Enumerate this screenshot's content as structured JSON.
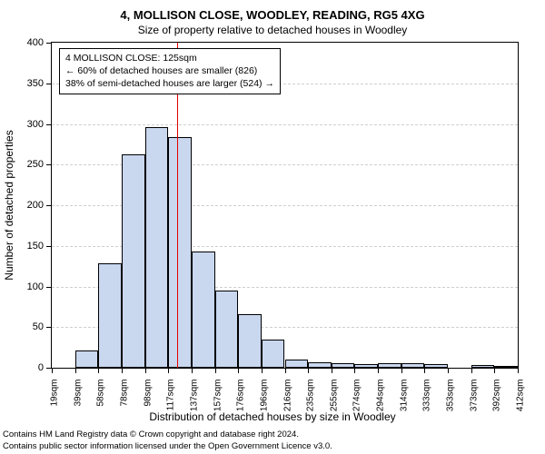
{
  "title": "4, MOLLISON CLOSE, WOODLEY, READING, RG5 4XG",
  "subtitle": "Size of property relative to detached houses in Woodley",
  "y_axis": {
    "title": "Number of detached properties",
    "min": 0,
    "max": 400,
    "ticks": [
      0,
      50,
      100,
      150,
      200,
      250,
      300,
      350,
      400
    ]
  },
  "x_axis": {
    "title": "Distribution of detached houses by size in Woodley",
    "labels": [
      "19sqm",
      "39sqm",
      "58sqm",
      "78sqm",
      "98sqm",
      "117sqm",
      "137sqm",
      "157sqm",
      "176sqm",
      "196sqm",
      "216sqm",
      "235sqm",
      "255sqm",
      "274sqm",
      "294sqm",
      "314sqm",
      "333sqm",
      "353sqm",
      "373sqm",
      "392sqm",
      "412sqm"
    ]
  },
  "histogram": {
    "type": "histogram",
    "bar_fill": "#c9d7ef",
    "bar_stroke": "#000000",
    "grid_color": "#cfcfcf",
    "bin_start": 19,
    "bin_end": 412,
    "values": [
      0,
      21,
      128,
      263,
      296,
      284,
      143,
      95,
      66,
      35,
      10,
      7,
      6,
      5,
      6,
      6,
      5,
      0,
      3,
      2
    ],
    "marker": {
      "x_value": 125,
      "color": "#e60000"
    },
    "annotation": {
      "lines": [
        "4 MOLLISON CLOSE: 125sqm",
        "← 60% of detached houses are smaller (826)",
        "38% of semi-detached houses are larger (524) →"
      ]
    }
  },
  "footer": {
    "line1": "Contains HM Land Registry data © Crown copyright and database right 2024.",
    "line2": "Contains public sector information licensed under the Open Government Licence v3.0."
  }
}
